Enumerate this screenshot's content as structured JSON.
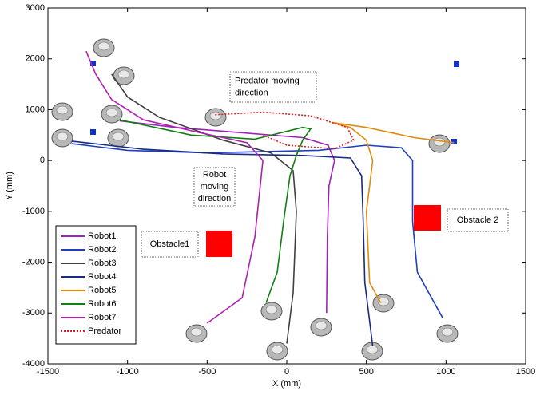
{
  "chart_data": {
    "type": "line",
    "xlabel": "X (mm)",
    "ylabel": "Y (mm)",
    "xlim": [
      -1500,
      1500
    ],
    "xticks": [
      -1500,
      -1000,
      -500,
      0,
      500,
      1000,
      1500
    ],
    "ylim": [
      -4000,
      3000
    ],
    "yticks": [
      -4000,
      -3000,
      -2000,
      -1000,
      0,
      1000,
      2000,
      3000
    ],
    "legend": "lower left",
    "annotations": [
      {
        "lines": [
          "Predator moving",
          "direction"
        ]
      },
      {
        "lines": [
          "Robot",
          "moving",
          "direction"
        ]
      },
      {
        "lines": [
          "Obstacle1"
        ]
      },
      {
        "lines": [
          "Obstacle 2"
        ]
      }
    ],
    "series": [
      {
        "name": "Robot1",
        "color": "#a020c0",
        "style": "solid",
        "x": [
          250,
          255,
          265,
          300,
          260,
          100,
          -300,
          -700,
          -1050
        ],
        "values": [
          -3000,
          -1500,
          -500,
          0,
          300,
          450,
          550,
          650,
          780
        ]
      },
      {
        "name": "Robot2",
        "color": "#1f3fbf",
        "style": "solid",
        "x": [
          980,
          820,
          790,
          790,
          720,
          500,
          200,
          -500,
          -1000,
          -1350
        ],
        "values": [
          -3100,
          -2200,
          -1200,
          0,
          250,
          300,
          200,
          150,
          200,
          330
        ]
      },
      {
        "name": "Robot3",
        "color": "#404040",
        "style": "solid",
        "x": [
          0,
          40,
          60,
          40,
          -100,
          -400,
          -800,
          -1000,
          -1100
        ],
        "values": [
          -3600,
          -2600,
          -1000,
          -200,
          150,
          400,
          850,
          1250,
          1700
        ]
      },
      {
        "name": "Robot4",
        "color": "#1a2a80",
        "style": "solid",
        "x": [
          540,
          490,
          480,
          470,
          400,
          100,
          -400,
          -900,
          -1350
        ],
        "values": [
          -3650,
          -2400,
          -1200,
          -300,
          50,
          100,
          130,
          220,
          380
        ]
      },
      {
        "name": "Robot5",
        "color": "#e08a10",
        "style": "solid",
        "x": [
          590,
          520,
          500,
          540,
          500,
          400,
          280,
          500,
          800,
          1050
        ],
        "values": [
          -2800,
          -2400,
          -1000,
          0,
          400,
          650,
          750,
          650,
          450,
          350
        ]
      },
      {
        "name": "Robot6",
        "color": "#108010",
        "style": "solid",
        "x": [
          -130,
          -60,
          -20,
          20,
          60,
          100,
          150,
          100,
          -200,
          -600,
          -1050
        ],
        "values": [
          -2800,
          -2200,
          -1200,
          -300,
          100,
          400,
          620,
          650,
          420,
          500,
          800
        ]
      },
      {
        "name": "Robot7",
        "color": "#b020b0",
        "style": "solid",
        "x": [
          -500,
          -280,
          -200,
          -150,
          -250,
          -550,
          -900,
          -1100,
          -1200,
          -1260
        ],
        "values": [
          -3200,
          -2700,
          -1500,
          0,
          350,
          550,
          800,
          1200,
          1700,
          2150
        ]
      },
      {
        "name": "Predator",
        "color": "#e02020",
        "style": "dotted",
        "x": [
          -450,
          -150,
          150,
          380,
          420,
          300,
          0,
          -150
        ],
        "values": [
          900,
          950,
          880,
          650,
          400,
          230,
          300,
          500
        ]
      }
    ]
  }
}
